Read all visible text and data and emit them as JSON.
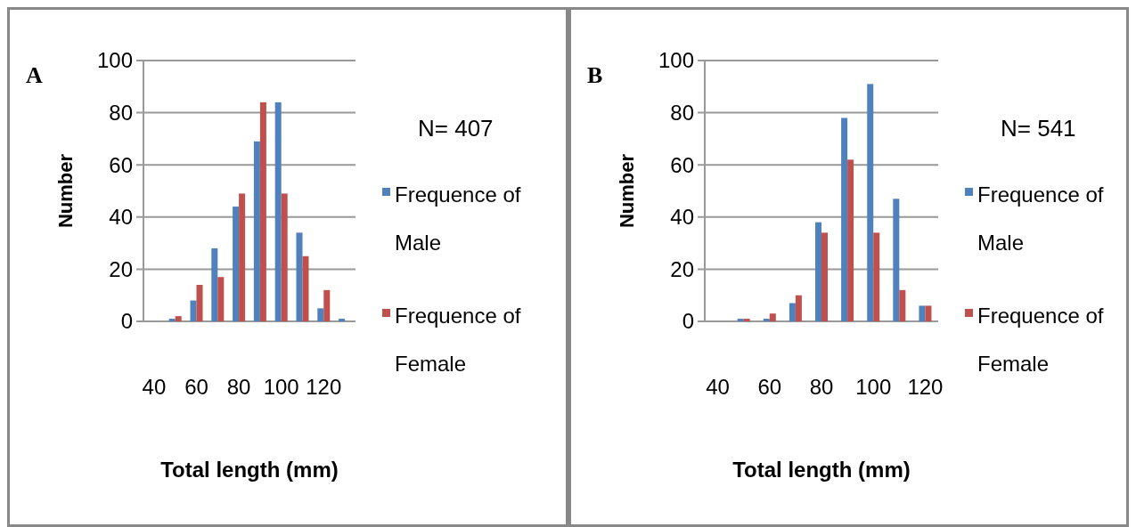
{
  "chart_data": [
    {
      "type": "bar",
      "title": "A",
      "xlabel": "Total length (mm)",
      "ylabel": "Number",
      "annotations": [
        "N= 407"
      ],
      "categories": [
        "40",
        null,
        "60",
        null,
        "80",
        null,
        "100",
        null,
        "120",
        null
      ],
      "series": [
        {
          "name": "Frequence of Male",
          "color": "#4f81bd",
          "values": [
            0,
            1,
            8,
            28,
            44,
            69,
            84,
            34,
            5,
            1
          ]
        },
        {
          "name": "Frequence of Female",
          "color": "#c0504d",
          "values": [
            0,
            2,
            14,
            17,
            49,
            84,
            49,
            25,
            12,
            0
          ]
        }
      ],
      "ylim": [
        0,
        100
      ],
      "yticks": [
        0,
        20,
        40,
        60,
        80,
        100
      ],
      "grid": "y",
      "legend": "right"
    },
    {
      "type": "bar",
      "title": "B",
      "xlabel": "Total length (mm)",
      "ylabel": "Number",
      "annotations": [
        "N= 541"
      ],
      "categories": [
        "40",
        null,
        "60",
        null,
        "80",
        null,
        "100",
        null,
        "120"
      ],
      "series": [
        {
          "name": "Frequence of Male",
          "color": "#4f81bd",
          "values": [
            0,
            1,
            1,
            7,
            38,
            78,
            91,
            47,
            6
          ]
        },
        {
          "name": "Frequence of Female",
          "color": "#c0504d",
          "values": [
            0,
            1,
            3,
            10,
            34,
            62,
            34,
            12,
            6
          ]
        }
      ],
      "ylim": [
        0,
        100
      ],
      "yticks": [
        0,
        20,
        40,
        60,
        80,
        100
      ],
      "grid": "y",
      "legend": "right"
    }
  ]
}
